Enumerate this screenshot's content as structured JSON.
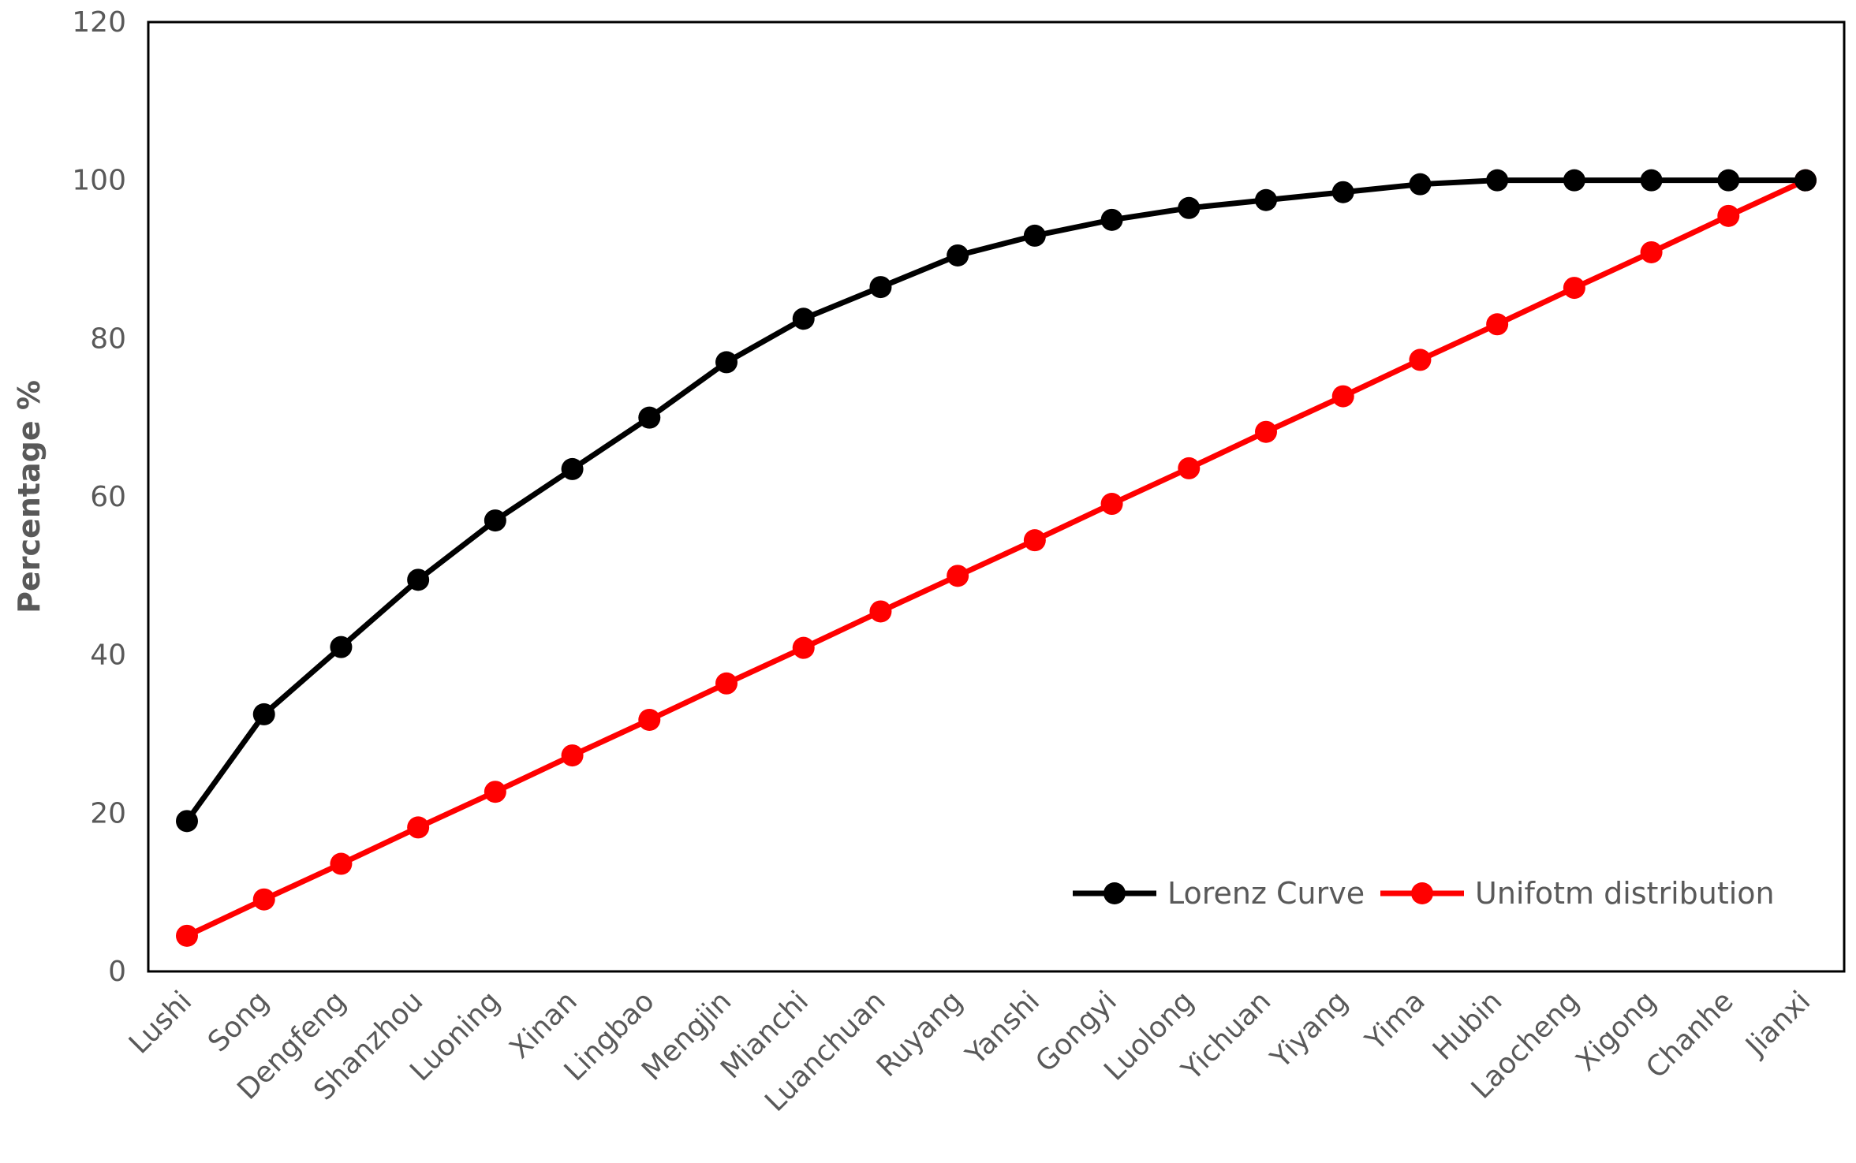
{
  "chart_data": {
    "type": "line",
    "title": "",
    "xlabel": "",
    "ylabel": "Percentage %",
    "ylim": [
      0,
      120
    ],
    "yticks": [
      "0",
      "20",
      "40",
      "60",
      "80",
      "100",
      "120"
    ],
    "ytick_values": [
      0,
      20,
      40,
      60,
      80,
      100,
      120
    ],
    "grid": false,
    "legend_position": "bottom-right",
    "categories": [
      "Lushi",
      "Song",
      "Dengfeng",
      "Shanzhou",
      "Luoning",
      "Xinan",
      "Lingbao",
      "Mengjin",
      "Mianchi",
      "Luanchuan",
      "Ruyang",
      "Yanshi",
      "Gongyi",
      "Luolong",
      "Yichuan",
      "Yiyang",
      "Yima",
      "Hubin",
      "Laocheng",
      "Xigong",
      "Chanhe",
      "Jianxi"
    ],
    "series": [
      {
        "name": "Lorenz Curve",
        "color": "#000000",
        "values": [
          19,
          32.5,
          41,
          49.5,
          57,
          63.5,
          70,
          77,
          82.5,
          86.5,
          90.5,
          93,
          95,
          96.5,
          97.5,
          98.5,
          99.5,
          100,
          100,
          100,
          100,
          100
        ]
      },
      {
        "name": "Unifotm distribution",
        "color": "#ff0000",
        "values": [
          4.5,
          9.1,
          13.6,
          18.2,
          22.7,
          27.3,
          31.8,
          36.4,
          40.9,
          45.5,
          50,
          54.5,
          59.1,
          63.6,
          68.2,
          72.7,
          77.3,
          81.8,
          86.4,
          90.9,
          95.5,
          100
        ]
      }
    ]
  }
}
